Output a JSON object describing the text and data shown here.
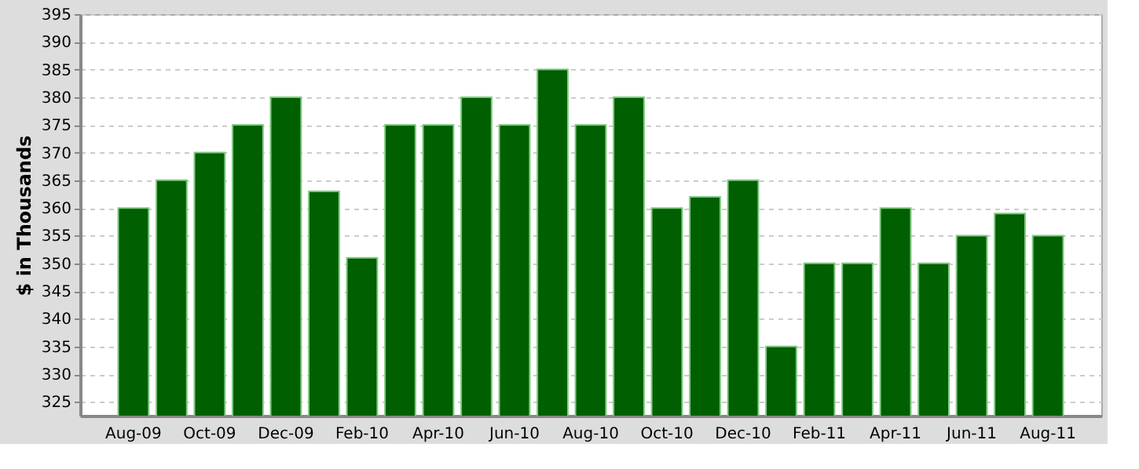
{
  "chart_data": {
    "type": "bar",
    "ylabel": "$ in Thousands",
    "categories": [
      "Aug-09",
      null,
      "Oct-09",
      null,
      "Dec-09",
      null,
      "Feb-10",
      null,
      "Apr-10",
      null,
      "Jun-10",
      null,
      "Aug-10",
      null,
      "Oct-10",
      null,
      "Dec-10",
      null,
      "Feb-11",
      null,
      "Apr-11",
      null,
      "Jun-11",
      null,
      "Aug-11"
    ],
    "values": [
      360,
      365,
      370,
      375,
      380,
      363,
      351,
      375,
      375,
      380,
      375,
      385,
      375,
      380,
      360,
      362,
      365,
      335,
      350,
      350,
      360,
      350,
      355,
      359,
      355
    ],
    "color": "#005f00",
    "ylim": [
      322.5,
      395
    ],
    "yticks": [
      325,
      330,
      335,
      340,
      345,
      350,
      355,
      360,
      365,
      370,
      375,
      380,
      385,
      390,
      395
    ],
    "grid": "y"
  }
}
